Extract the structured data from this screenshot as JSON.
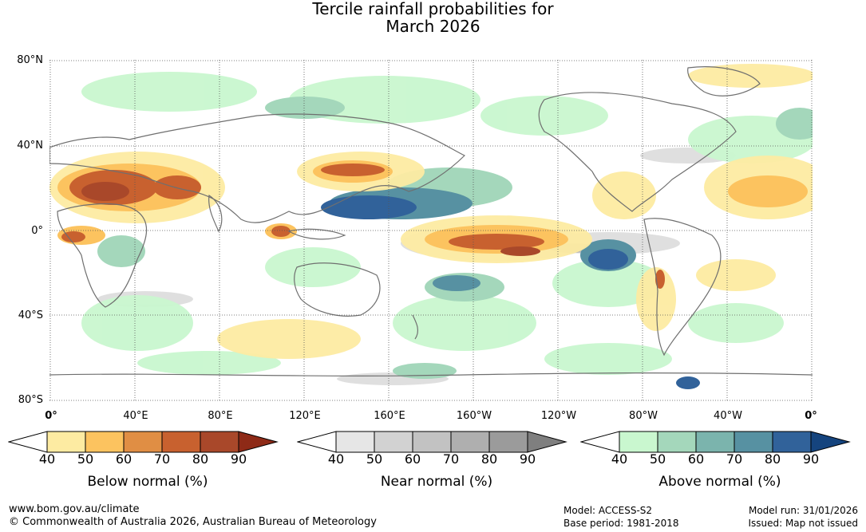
{
  "title": {
    "line1": "Tercile rainfall probabilities for",
    "line2": "March 2026"
  },
  "map": {
    "lat_labels": [
      "80°N",
      "40°N",
      "0°",
      "40°S",
      "80°S"
    ],
    "lon_labels": [
      "0°",
      "40°E",
      "80°E",
      "120°E",
      "160°E",
      "160°W",
      "120°W",
      "80°W",
      "40°W",
      "0°"
    ]
  },
  "legends": [
    {
      "title": "Below normal (%)",
      "ticks": [
        "40",
        "50",
        "60",
        "70",
        "80",
        "90"
      ],
      "colors": [
        "#ffffff",
        "#fdeba2",
        "#fcc35f",
        "#e08e44",
        "#c8612f",
        "#a9482a",
        "#8e2a17"
      ]
    },
    {
      "title": "Near normal (%)",
      "ticks": [
        "40",
        "50",
        "60",
        "70",
        "80",
        "90"
      ],
      "colors": [
        "#ffffff",
        "#e6e6e6",
        "#d2d2d2",
        "#c2c2c2",
        "#afafaf",
        "#9b9b9b",
        "#7f7f7f"
      ]
    },
    {
      "title": "Above normal (%)",
      "ticks": [
        "40",
        "50",
        "60",
        "70",
        "80",
        "90"
      ],
      "colors": [
        "#ffffff",
        "#c9f7cf",
        "#a4d7bb",
        "#7bb4ad",
        "#5791a2",
        "#31629a",
        "#15447e"
      ]
    }
  ],
  "footer": {
    "url": "www.bom.gov.au/climate",
    "copyright": "© Commonwealth of Australia 2026, Australian Bureau of Meteorology",
    "model": "Model: ACCESS-S2",
    "base_period": "Base period: 1981-2018",
    "model_run": "Model run: 31/01/2026",
    "issued": "Issued: Map not issued"
  }
}
